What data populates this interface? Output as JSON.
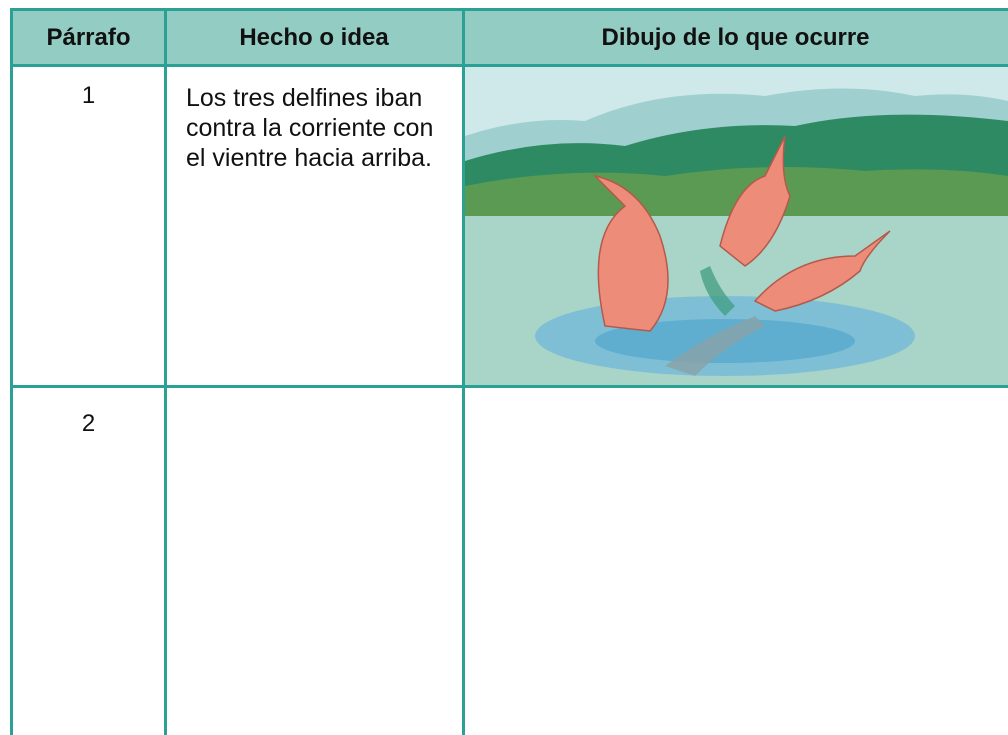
{
  "table": {
    "headers": [
      "Párrafo",
      "Hecho o idea",
      "Dibujo de lo que ocurre"
    ],
    "rows": [
      [
        "1",
        "Los tres delfines iban contra la corriente con el vientre hacia arriba."
      ],
      [
        "2"
      ]
    ]
  }
}
